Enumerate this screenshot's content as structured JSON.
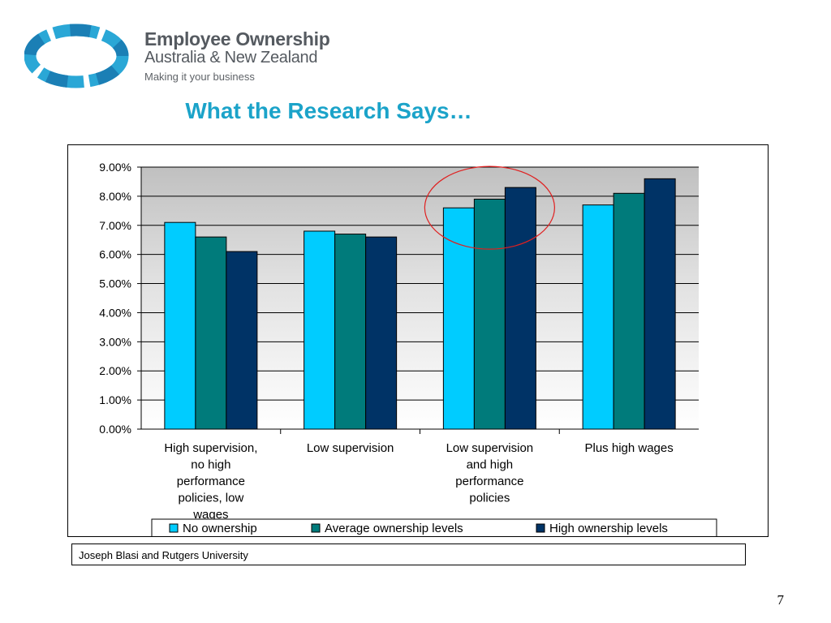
{
  "brand": {
    "title": "Employee Ownership",
    "subtitle": "Australia & New Zealand",
    "tagline": "Making it your business"
  },
  "page_title": "What the Research Says…",
  "source_note": "Joseph Blasi and Rutgers University",
  "slide_number": "7",
  "colors": {
    "title": "#1ba3c9",
    "no_ownership": "#00ccff",
    "average_ownership": "#007b7b",
    "high_ownership": "#003366",
    "highlight_circle": "#e02020"
  },
  "chart_data": {
    "type": "bar",
    "categories": [
      [
        "High supervision,",
        "no high",
        "performance",
        "policies, low",
        "wages"
      ],
      [
        "Low supervision"
      ],
      [
        "Low supervision",
        "and high",
        "performance",
        "policies"
      ],
      [
        "Plus high wages"
      ]
    ],
    "series": [
      {
        "name": "No ownership",
        "values": [
          7.1,
          6.8,
          7.6,
          7.7
        ]
      },
      {
        "name": "Average ownership levels",
        "values": [
          6.6,
          6.7,
          7.9,
          8.1
        ]
      },
      {
        "name": "High ownership levels",
        "values": [
          6.1,
          6.6,
          8.3,
          8.6
        ]
      }
    ],
    "y_ticks": [
      "0.00%",
      "1.00%",
      "2.00%",
      "3.00%",
      "4.00%",
      "5.00%",
      "6.00%",
      "7.00%",
      "8.00%",
      "9.00%"
    ],
    "ylim": [
      0,
      9
    ],
    "grid": true,
    "legend_position": "bottom",
    "highlighted_category": 2
  }
}
